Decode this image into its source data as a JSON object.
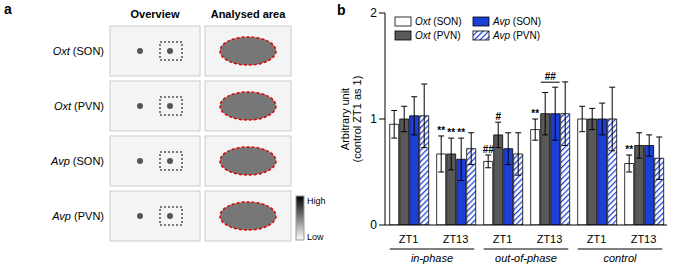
{
  "panel_a": {
    "label": "a",
    "columns": [
      "Overview",
      "Analysed area"
    ],
    "rows": [
      "Oxt (SON)",
      "Oxt (PVN)",
      "Avp (SON)",
      "Avp (PVN)"
    ],
    "colorbar": [
      "High",
      "Low"
    ]
  },
  "chart_data": {
    "type": "bar",
    "panel_label": "b",
    "y_label": "Arbitrary unit (control ZT1 as 1)",
    "categories": [
      "ZT1",
      "ZT13",
      "ZT1",
      "ZT13",
      "ZT1",
      "ZT13"
    ],
    "groups": [
      "in-phase",
      "out-of-phase",
      "control"
    ],
    "ylim": [
      0,
      2
    ],
    "yticks": [
      0,
      1,
      2
    ],
    "legend": "top-left",
    "series": [
      {
        "name": "Oxt (SON)",
        "color": "#ffffff",
        "values": [
          0.95,
          0.67,
          0.6,
          0.9,
          1.0,
          0.58
        ],
        "errors": [
          0.13,
          0.17,
          0.06,
          0.1,
          0.12,
          0.08
        ],
        "significance": [
          null,
          "**",
          "##",
          "**",
          null,
          "**"
        ]
      },
      {
        "name": "Oxt (PVN)",
        "color": "#595959",
        "values": [
          1.0,
          0.67,
          0.85,
          1.05,
          1.0,
          0.75
        ],
        "errors": [
          0.12,
          0.15,
          0.12,
          0.2,
          0.1,
          0.12
        ],
        "significance": [
          null,
          "**",
          "#",
          null,
          null,
          null
        ]
      },
      {
        "name": "Avp (SON)",
        "color": "#1c3fd6",
        "values": [
          1.03,
          0.62,
          0.72,
          1.05,
          1.0,
          0.75
        ],
        "errors": [
          0.18,
          0.2,
          0.15,
          0.25,
          0.15,
          0.1
        ],
        "significance": [
          null,
          "**",
          null,
          null,
          null,
          null
        ]
      },
      {
        "name": "Avp (PVN)",
        "color": "#1c3fd6",
        "values": [
          1.03,
          0.72,
          0.67,
          1.05,
          1.0,
          0.63
        ],
        "errors": [
          0.3,
          0.15,
          0.2,
          0.3,
          0.3,
          0.2
        ],
        "significance": [
          null,
          null,
          null,
          null,
          null,
          null
        ]
      }
    ],
    "brackets": [
      {
        "text": "##",
        "category_index": 3,
        "series": [
          "Oxt (PVN)",
          "Avp (SON)"
        ]
      }
    ]
  }
}
